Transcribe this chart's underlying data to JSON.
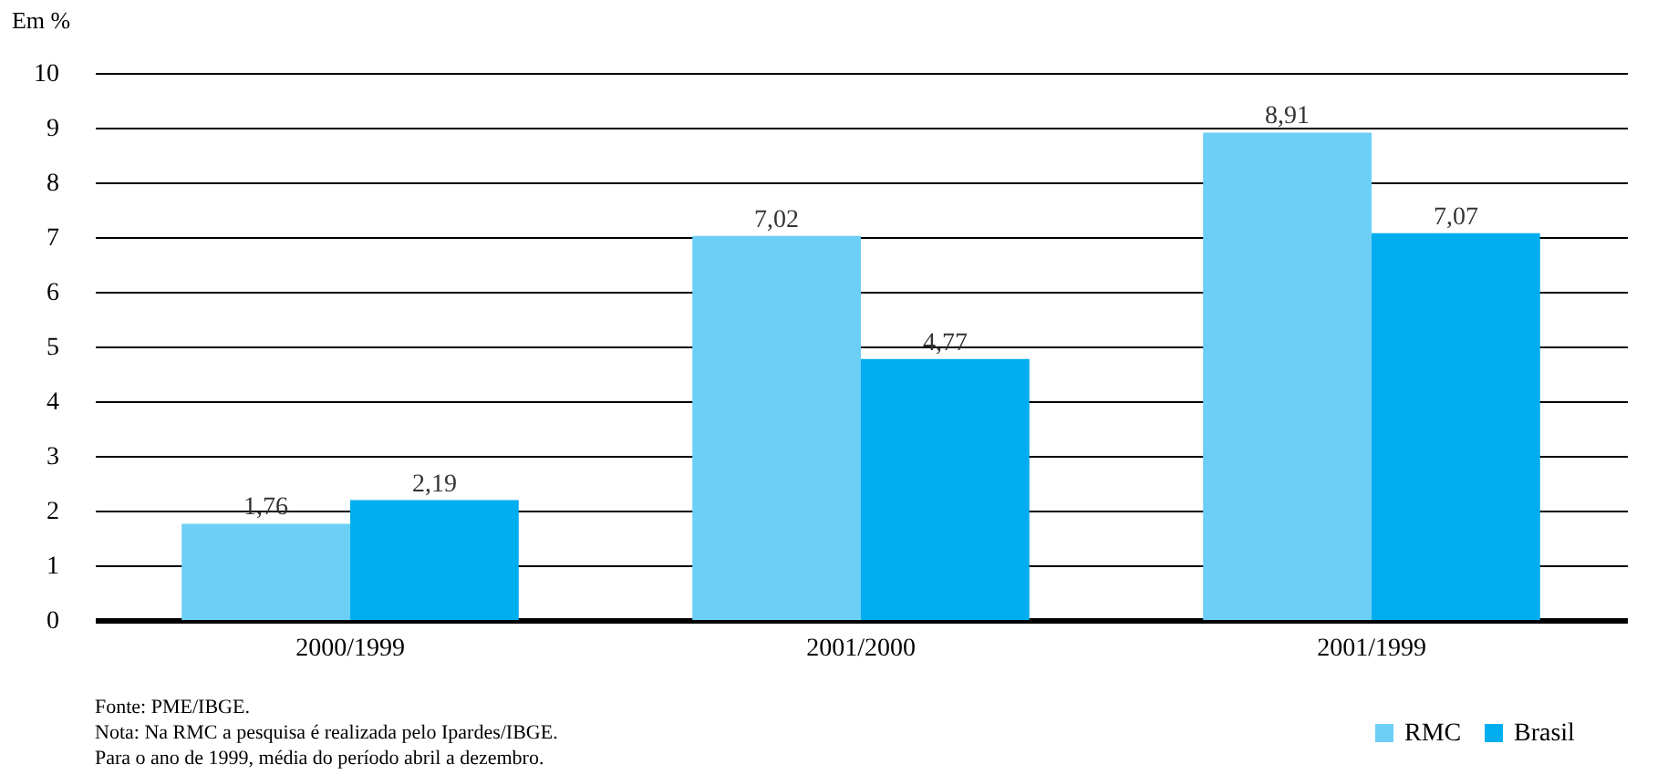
{
  "chart_data": {
    "type": "bar",
    "ylabel": "Em %",
    "categories": [
      "2000/1999",
      "2001/2000",
      "2001/1999"
    ],
    "series": [
      {
        "name": "RMC",
        "color": "#6dcff6",
        "values": [
          1.76,
          7.02,
          8.91
        ],
        "value_labels": [
          "1,76",
          "7,02",
          "8,91"
        ]
      },
      {
        "name": "Brasil",
        "color": "#00aeef",
        "values": [
          2.19,
          4.77,
          7.07
        ],
        "value_labels": [
          "2,19",
          "4,77",
          "7,07"
        ]
      }
    ],
    "ylim": [
      0,
      10
    ],
    "yticks": [
      0,
      1,
      2,
      3,
      4,
      5,
      6,
      7,
      8,
      9,
      10
    ],
    "grid": "y",
    "legend": "bottom right",
    "annotations": [
      "Fonte: PME/IBGE.",
      "Nota: Na RMC a pesquisa é realizada pelo Ipardes/IBGE.",
      "Para o ano de 1999, média do período abril a dezembro."
    ]
  }
}
